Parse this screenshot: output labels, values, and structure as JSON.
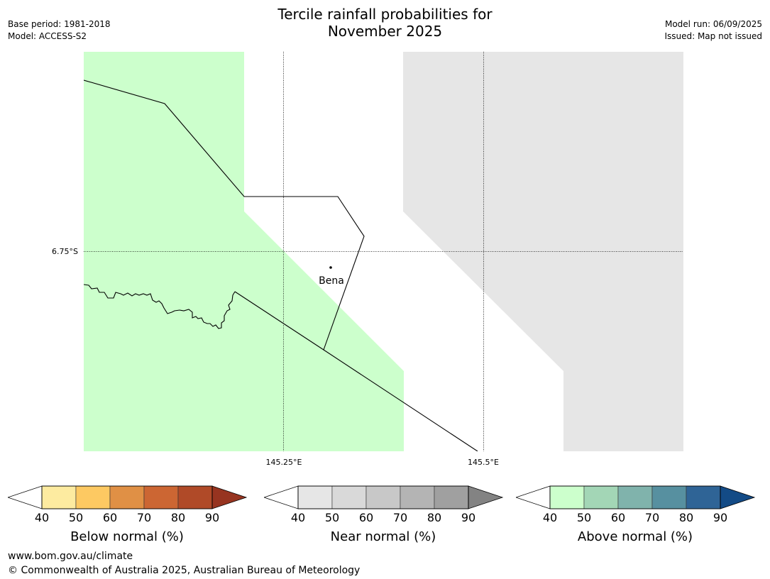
{
  "header": {
    "title_line1": "Tercile rainfall probabilities for",
    "title_line2": "November 2025",
    "base_period": "Base period: 1981-2018",
    "model": "Model: ACCESS-S2",
    "model_run": "Model run: 06/09/2025",
    "issued": "Issued: Map not issued"
  },
  "map": {
    "lon_labels": [
      "145.25°E",
      "145.5°E"
    ],
    "lat_labels": [
      "6.75°S"
    ],
    "places": [
      {
        "name": "Bena"
      }
    ],
    "region_colors": {
      "above_normal_40_50": "#ccffcc",
      "near_normal_40_50": "#e6e6e6",
      "no_dominant": "#ffffff"
    }
  },
  "colorbars": [
    {
      "title": "Below normal (%)",
      "ticks": [
        "40",
        "50",
        "60",
        "70",
        "80",
        "90"
      ],
      "colors": [
        "#ffffff",
        "#fdeba0",
        "#fdc962",
        "#e09045",
        "#cc6633",
        "#b04a28",
        "#973420"
      ]
    },
    {
      "title": "Near normal (%)",
      "ticks": [
        "40",
        "50",
        "60",
        "70",
        "80",
        "90"
      ],
      "colors": [
        "#ffffff",
        "#e6e6e6",
        "#d9d9d9",
        "#c8c8c8",
        "#b4b4b4",
        "#a0a0a0",
        "#838383"
      ]
    },
    {
      "title": "Above normal (%)",
      "ticks": [
        "40",
        "50",
        "60",
        "70",
        "80",
        "90"
      ],
      "colors": [
        "#ffffff",
        "#ccffcc",
        "#a3d6b6",
        "#80b3ac",
        "#5790a0",
        "#2f6496",
        "#134b86"
      ]
    }
  ],
  "footer": {
    "website": "www.bom.gov.au/climate",
    "copyright": "© Commonwealth of Australia 2025, Australian Bureau of Meteorology"
  }
}
